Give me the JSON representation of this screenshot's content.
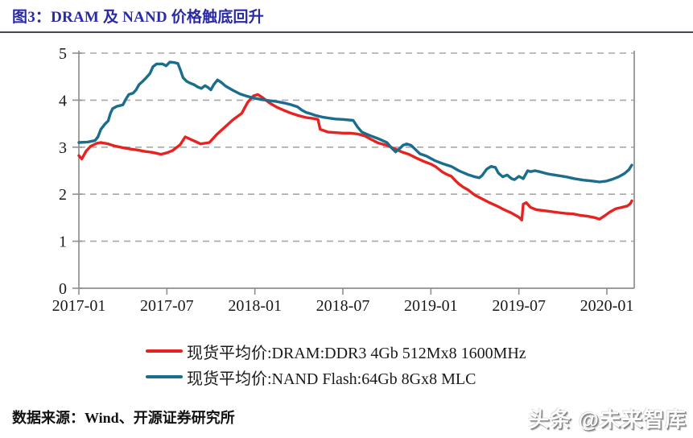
{
  "header": {
    "title": "图3：DRAM 及 NAND 价格触底回升"
  },
  "footer": {
    "source": "数据来源：Wind、开源证券研究所",
    "watermark": "头条 @未来智库"
  },
  "colors": {
    "title": "#2a2aa4",
    "rule": "#44445a",
    "dram": "#e62320",
    "nand": "#1a6d8c",
    "axis": "#8f8f8f",
    "grid": "#a8a8a8",
    "text": "#1a1a1a"
  },
  "chart_data": {
    "type": "line",
    "title": "图3：DRAM 及 NAND 价格触底回升",
    "xlabel": "",
    "ylabel": "",
    "x_axis": {
      "unit": "month",
      "start": "2017-01",
      "end": "2020-02",
      "tick_labels": [
        "2017-01",
        "2017-07",
        "2018-01",
        "2018-07",
        "2019-01",
        "2019-07",
        "2020-01"
      ],
      "tick_positions_months": [
        0,
        6,
        12,
        18,
        24,
        30,
        36
      ],
      "range_months": [
        0,
        37.7
      ]
    },
    "y_axis": {
      "range": [
        0,
        5
      ],
      "ticks": [
        0,
        1,
        2,
        3,
        4,
        5
      ]
    },
    "grid": "dashed-horizontal",
    "legend_position": "bottom",
    "series": [
      {
        "name": "现货平均价:DRAM:DDR3 4Gb 512Mx8 1600MHz",
        "color": "#e62320",
        "points": [
          [
            0,
            2.82
          ],
          [
            0.2,
            2.75
          ],
          [
            0.5,
            2.92
          ],
          [
            0.8,
            3.02
          ],
          [
            1.2,
            3.08
          ],
          [
            1.5,
            3.1
          ],
          [
            2.0,
            3.07
          ],
          [
            2.5,
            3.02
          ],
          [
            3.0,
            2.99
          ],
          [
            3.5,
            2.96
          ],
          [
            4.0,
            2.94
          ],
          [
            4.5,
            2.91
          ],
          [
            5.0,
            2.89
          ],
          [
            5.6,
            2.85
          ],
          [
            6.0,
            2.88
          ],
          [
            6.4,
            2.93
          ],
          [
            6.9,
            3.05
          ],
          [
            7.25,
            3.22
          ],
          [
            7.8,
            3.14
          ],
          [
            8.3,
            3.07
          ],
          [
            8.9,
            3.1
          ],
          [
            9.4,
            3.27
          ],
          [
            10.0,
            3.44
          ],
          [
            10.5,
            3.58
          ],
          [
            11.1,
            3.72
          ],
          [
            11.5,
            3.95
          ],
          [
            11.9,
            4.09
          ],
          [
            12.2,
            4.12
          ],
          [
            12.5,
            4.06
          ],
          [
            13.0,
            3.94
          ],
          [
            13.5,
            3.85
          ],
          [
            14.0,
            3.78
          ],
          [
            14.5,
            3.72
          ],
          [
            15.0,
            3.67
          ],
          [
            15.5,
            3.63
          ],
          [
            16.0,
            3.61
          ],
          [
            16.3,
            3.59
          ],
          [
            16.45,
            3.38
          ],
          [
            17.0,
            3.32
          ],
          [
            17.5,
            3.31
          ],
          [
            18.0,
            3.3
          ],
          [
            18.5,
            3.3
          ],
          [
            19.0,
            3.28
          ],
          [
            19.5,
            3.24
          ],
          [
            19.9,
            3.17
          ],
          [
            20.4,
            3.09
          ],
          [
            21.0,
            3.04
          ],
          [
            21.5,
            2.97
          ],
          [
            22.0,
            2.9
          ],
          [
            22.5,
            2.85
          ],
          [
            23.0,
            2.77
          ],
          [
            23.5,
            2.7
          ],
          [
            24.0,
            2.64
          ],
          [
            24.3,
            2.59
          ],
          [
            24.8,
            2.47
          ],
          [
            25.1,
            2.42
          ],
          [
            25.4,
            2.38
          ],
          [
            25.7,
            2.28
          ],
          [
            25.9,
            2.22
          ],
          [
            26.2,
            2.15
          ],
          [
            26.5,
            2.1
          ],
          [
            27.0,
            1.98
          ],
          [
            27.5,
            1.9
          ],
          [
            28.0,
            1.82
          ],
          [
            28.5,
            1.75
          ],
          [
            29.0,
            1.67
          ],
          [
            29.5,
            1.6
          ],
          [
            30.0,
            1.51
          ],
          [
            30.2,
            1.45
          ],
          [
            30.3,
            1.79
          ],
          [
            30.5,
            1.82
          ],
          [
            30.8,
            1.72
          ],
          [
            31.2,
            1.67
          ],
          [
            31.7,
            1.65
          ],
          [
            32.2,
            1.63
          ],
          [
            32.7,
            1.61
          ],
          [
            33.2,
            1.59
          ],
          [
            33.7,
            1.58
          ],
          [
            34.2,
            1.55
          ],
          [
            34.7,
            1.53
          ],
          [
            35.2,
            1.5
          ],
          [
            35.5,
            1.47
          ],
          [
            35.8,
            1.53
          ],
          [
            36.2,
            1.62
          ],
          [
            36.6,
            1.69
          ],
          [
            37.0,
            1.72
          ],
          [
            37.4,
            1.75
          ],
          [
            37.6,
            1.8
          ],
          [
            37.7,
            1.86
          ]
        ]
      },
      {
        "name": "现货平均价:NAND Flash:64Gb 8Gx8 MLC",
        "color": "#1a6d8c",
        "points": [
          [
            0,
            3.1
          ],
          [
            0.6,
            3.11
          ],
          [
            1.1,
            3.14
          ],
          [
            1.3,
            3.22
          ],
          [
            1.5,
            3.38
          ],
          [
            1.8,
            3.5
          ],
          [
            2.0,
            3.56
          ],
          [
            2.15,
            3.72
          ],
          [
            2.3,
            3.82
          ],
          [
            2.6,
            3.87
          ],
          [
            3.0,
            3.9
          ],
          [
            3.2,
            4.02
          ],
          [
            3.4,
            4.12
          ],
          [
            3.7,
            4.15
          ],
          [
            3.9,
            4.22
          ],
          [
            4.1,
            4.33
          ],
          [
            4.35,
            4.4
          ],
          [
            4.6,
            4.48
          ],
          [
            4.85,
            4.57
          ],
          [
            5.05,
            4.71
          ],
          [
            5.3,
            4.77
          ],
          [
            5.7,
            4.77
          ],
          [
            5.95,
            4.73
          ],
          [
            6.2,
            4.81
          ],
          [
            6.5,
            4.8
          ],
          [
            6.75,
            4.78
          ],
          [
            6.95,
            4.62
          ],
          [
            7.1,
            4.48
          ],
          [
            7.35,
            4.4
          ],
          [
            7.6,
            4.36
          ],
          [
            7.85,
            4.33
          ],
          [
            8.1,
            4.28
          ],
          [
            8.35,
            4.25
          ],
          [
            8.6,
            4.31
          ],
          [
            8.8,
            4.27
          ],
          [
            9.0,
            4.22
          ],
          [
            9.2,
            4.33
          ],
          [
            9.45,
            4.43
          ],
          [
            9.7,
            4.38
          ],
          [
            10.0,
            4.3
          ],
          [
            10.5,
            4.21
          ],
          [
            11.0,
            4.13
          ],
          [
            11.5,
            4.08
          ],
          [
            12.0,
            4.04
          ],
          [
            12.5,
            4.01
          ],
          [
            13.0,
            3.99
          ],
          [
            13.5,
            3.97
          ],
          [
            14.0,
            3.94
          ],
          [
            14.5,
            3.9
          ],
          [
            14.9,
            3.86
          ],
          [
            15.2,
            3.79
          ],
          [
            15.5,
            3.74
          ],
          [
            15.8,
            3.71
          ],
          [
            16.2,
            3.67
          ],
          [
            16.6,
            3.64
          ],
          [
            17.0,
            3.62
          ],
          [
            17.5,
            3.6
          ],
          [
            18.0,
            3.59
          ],
          [
            18.7,
            3.57
          ],
          [
            19.0,
            3.43
          ],
          [
            19.3,
            3.32
          ],
          [
            19.6,
            3.28
          ],
          [
            20.0,
            3.23
          ],
          [
            20.5,
            3.17
          ],
          [
            21.0,
            3.1
          ],
          [
            21.3,
            2.99
          ],
          [
            21.6,
            2.9
          ],
          [
            21.9,
            2.98
          ],
          [
            22.1,
            3.04
          ],
          [
            22.35,
            3.07
          ],
          [
            22.65,
            3.04
          ],
          [
            22.95,
            2.95
          ],
          [
            23.25,
            2.86
          ],
          [
            23.7,
            2.81
          ],
          [
            24.3,
            2.71
          ],
          [
            24.8,
            2.65
          ],
          [
            25.4,
            2.59
          ],
          [
            25.9,
            2.5
          ],
          [
            26.5,
            2.42
          ],
          [
            27.0,
            2.37
          ],
          [
            27.3,
            2.35
          ],
          [
            27.5,
            2.4
          ],
          [
            27.8,
            2.53
          ],
          [
            28.1,
            2.59
          ],
          [
            28.4,
            2.57
          ],
          [
            28.6,
            2.45
          ],
          [
            28.9,
            2.37
          ],
          [
            29.2,
            2.41
          ],
          [
            29.5,
            2.33
          ],
          [
            29.7,
            2.31
          ],
          [
            30.0,
            2.38
          ],
          [
            30.3,
            2.33
          ],
          [
            30.6,
            2.5
          ],
          [
            30.8,
            2.48
          ],
          [
            31.1,
            2.5
          ],
          [
            31.4,
            2.48
          ],
          [
            32.0,
            2.43
          ],
          [
            32.6,
            2.4
          ],
          [
            33.2,
            2.37
          ],
          [
            33.8,
            2.33
          ],
          [
            34.4,
            2.3
          ],
          [
            35.0,
            2.28
          ],
          [
            35.5,
            2.26
          ],
          [
            36.0,
            2.28
          ],
          [
            36.4,
            2.32
          ],
          [
            36.8,
            2.37
          ],
          [
            37.2,
            2.44
          ],
          [
            37.5,
            2.52
          ],
          [
            37.7,
            2.62
          ]
        ]
      }
    ]
  }
}
